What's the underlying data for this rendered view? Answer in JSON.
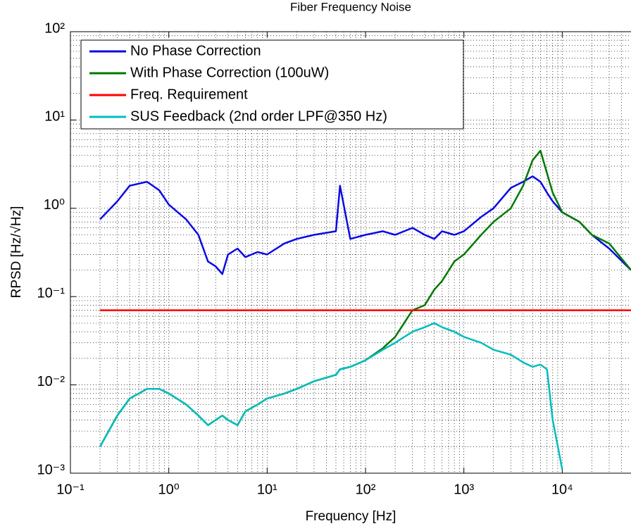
{
  "chart_data": {
    "type": "line",
    "title": "Fiber Frequency Noise",
    "xlabel": "Frequency [Hz]",
    "ylabel": "RPSD [Hz/√Hz]",
    "xscale": "log",
    "yscale": "log",
    "grid": true,
    "minor_grid": true,
    "legend": "upper left",
    "xlim": [
      0.1,
      50000
    ],
    "ylim": [
      0.001,
      100
    ],
    "xticks": [
      {
        "value": 0.1,
        "label": "10⁻¹"
      },
      {
        "value": 1,
        "label": "10⁰"
      },
      {
        "value": 10,
        "label": "10¹"
      },
      {
        "value": 100,
        "label": "10²"
      },
      {
        "value": 1000,
        "label": "10³"
      },
      {
        "value": 10000,
        "label": "10⁴"
      }
    ],
    "yticks": [
      {
        "value": 0.001,
        "label": "10⁻³"
      },
      {
        "value": 0.01,
        "label": "10⁻²"
      },
      {
        "value": 0.1,
        "label": "10⁻¹"
      },
      {
        "value": 1,
        "label": "10⁰"
      },
      {
        "value": 10,
        "label": "10¹"
      },
      {
        "value": 100,
        "label": "10²"
      }
    ],
    "x": [
      0.2,
      0.3,
      0.4,
      0.6,
      0.8,
      1,
      1.5,
      2,
      2.5,
      3,
      3.5,
      4,
      5,
      6,
      8,
      10,
      15,
      20,
      30,
      50,
      55,
      70,
      100,
      150,
      200,
      300,
      400,
      500,
      600,
      800,
      1000,
      1500,
      2000,
      3000,
      4000,
      5000,
      6000,
      7000,
      8000,
      10000,
      15000,
      20000,
      30000,
      50000
    ],
    "series": [
      {
        "name": "No Phase Correction",
        "color": "#0a0ae6",
        "values": [
          0.75,
          1.2,
          1.8,
          2.0,
          1.6,
          1.1,
          0.75,
          0.5,
          0.25,
          0.22,
          0.18,
          0.3,
          0.35,
          0.28,
          0.32,
          0.3,
          0.4,
          0.45,
          0.5,
          0.55,
          1.8,
          0.45,
          0.5,
          0.55,
          0.5,
          0.6,
          0.5,
          0.45,
          0.55,
          0.5,
          0.55,
          0.8,
          1.0,
          1.7,
          2.0,
          2.3,
          2.0,
          1.5,
          1.2,
          0.9,
          0.7,
          0.5,
          0.35,
          0.2
        ]
      },
      {
        "name": "With Phase Correction (100uW)",
        "color": "#007a00",
        "values": [
          0.002,
          0.0045,
          0.007,
          0.009,
          0.009,
          0.008,
          0.006,
          0.0045,
          0.0035,
          0.004,
          0.0045,
          0.004,
          0.0035,
          0.005,
          0.006,
          0.007,
          0.008,
          0.009,
          0.011,
          0.013,
          0.015,
          0.016,
          0.019,
          0.026,
          0.035,
          0.07,
          0.08,
          0.12,
          0.15,
          0.25,
          0.3,
          0.5,
          0.7,
          1.0,
          1.8,
          3.5,
          4.5,
          2.5,
          1.5,
          0.9,
          0.7,
          0.5,
          0.4,
          0.2
        ]
      },
      {
        "name": "Freq. Requirement",
        "color": "#ff0000",
        "values": [
          0.07,
          0.07,
          0.07,
          0.07,
          0.07,
          0.07,
          0.07,
          0.07,
          0.07,
          0.07,
          0.07,
          0.07,
          0.07,
          0.07,
          0.07,
          0.07,
          0.07,
          0.07,
          0.07,
          0.07,
          0.07,
          0.07,
          0.07,
          0.07,
          0.07,
          0.07,
          0.07,
          0.07,
          0.07,
          0.07,
          0.07,
          0.07,
          0.07,
          0.07,
          0.07,
          0.07,
          0.07,
          0.07,
          0.07,
          0.07,
          0.07,
          0.07,
          0.07,
          0.07
        ]
      },
      {
        "name": "SUS Feedback (2nd order LPF@350 Hz)",
        "color": "#00bdbd",
        "values": [
          0.002,
          0.0045,
          0.007,
          0.009,
          0.009,
          0.008,
          0.006,
          0.0045,
          0.0035,
          0.004,
          0.0045,
          0.004,
          0.0035,
          0.005,
          0.006,
          0.007,
          0.008,
          0.009,
          0.011,
          0.013,
          0.015,
          0.016,
          0.019,
          0.025,
          0.03,
          0.04,
          0.045,
          0.05,
          0.045,
          0.04,
          0.035,
          0.03,
          0.025,
          0.022,
          0.018,
          0.016,
          0.017,
          0.015,
          0.004,
          0.0011,
          null,
          null,
          null,
          null
        ]
      }
    ]
  }
}
